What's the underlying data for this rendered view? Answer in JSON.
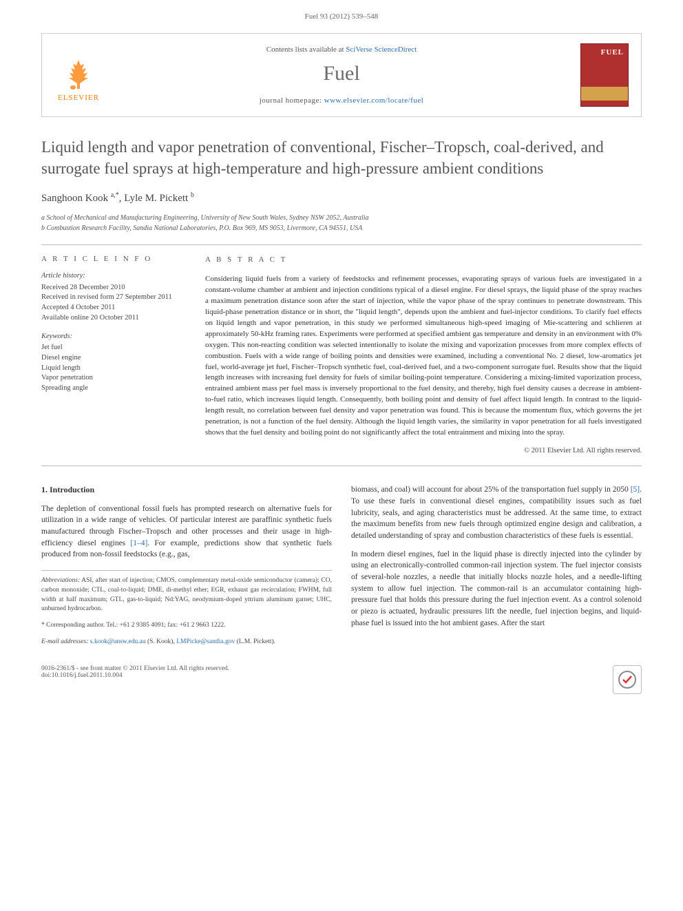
{
  "header": {
    "running_head": "Fuel 93 (2012) 539–548"
  },
  "masthead": {
    "publisher": "ELSEVIER",
    "contents_prefix": "Contents lists available at ",
    "contents_link": "SciVerse ScienceDirect",
    "journal_name": "Fuel",
    "homepage_label": "journal homepage: ",
    "homepage_url": "www.elsevier.com/locate/fuel",
    "cover_title": "FUEL"
  },
  "article": {
    "title": "Liquid length and vapor penetration of conventional, Fischer–Tropsch, coal-derived, and surrogate fuel sprays at high-temperature and high-pressure ambient conditions",
    "authors_html": "Sanghoon Kook <sup>a,*</sup>, Lyle M. Pickett <sup>b</sup>",
    "affiliations": [
      "a School of Mechanical and Manufacturing Engineering, University of New South Wales, Sydney NSW 2052, Australia",
      "b Combustion Research Facility, Sandia National Laboratories, P.O. Box 969, MS 9053, Livermore, CA 94551, USA"
    ]
  },
  "info": {
    "heading": "A R T I C L E   I N F O",
    "history_label": "Article history:",
    "history": [
      "Received 28 December 2010",
      "Received in revised form 27 September 2011",
      "Accepted 4 October 2011",
      "Available online 20 October 2011"
    ],
    "keywords_label": "Keywords:",
    "keywords": [
      "Jet fuel",
      "Diesel engine",
      "Liquid length",
      "Vapor penetration",
      "Spreading angle"
    ]
  },
  "abstract": {
    "heading": "A B S T R A C T",
    "text": "Considering liquid fuels from a variety of feedstocks and refinement processes, evaporating sprays of various fuels are investigated in a constant-volume chamber at ambient and injection conditions typical of a diesel engine. For diesel sprays, the liquid phase of the spray reaches a maximum penetration distance soon after the start of injection, while the vapor phase of the spray continues to penetrate downstream. This liquid-phase penetration distance or in short, the \"liquid length\", depends upon the ambient and fuel-injector conditions. To clarify fuel effects on liquid length and vapor penetration, in this study we performed simultaneous high-speed imaging of Mie-scattering and schlieren at approximately 50-kHz framing rates. Experiments were performed at specified ambient gas temperature and density in an environment with 0% oxygen. This non-reacting condition was selected intentionally to isolate the mixing and vaporization processes from more complex effects of combustion. Fuels with a wide range of boiling points and densities were examined, including a conventional No. 2 diesel, low-aromatics jet fuel, world-average jet fuel, Fischer–Tropsch synthetic fuel, coal-derived fuel, and a two-component surrogate fuel. Results show that the liquid length increases with increasing fuel density for fuels of similar boiling-point temperature. Considering a mixing-limited vaporization process, entrained ambient mass per fuel mass is inversely proportional to the fuel density, and thereby, high fuel density causes a decrease in ambient-to-fuel ratio, which increases liquid length. Consequently, both boiling point and density of fuel affect liquid length. In contrast to the liquid-length result, no correlation between fuel density and vapor penetration was found. This is because the momentum flux, which governs the jet penetration, is not a function of the fuel density. Although the liquid length varies, the similarity in vapor penetration for all fuels investigated shows that the fuel density and boiling point do not significantly affect the total entrainment and mixing into the spray.",
    "copyright": "© 2011 Elsevier Ltd. All rights reserved."
  },
  "body": {
    "section_heading": "1. Introduction",
    "left_paras": [
      "The depletion of conventional fossil fuels has prompted research on alternative fuels for utilization in a wide range of vehicles. Of particular interest are paraffinic synthetic fuels manufactured through Fischer–Tropsch and other processes and their usage in high-efficiency diesel engines [1–4]. For example, predictions show that synthetic fuels produced from non-fossil feedstocks (e.g., gas,"
    ],
    "right_paras": [
      "biomass, and coal) will account for about 25% of the transportation fuel supply in 2050 [5]. To use these fuels in conventional diesel engines, compatibility issues such as fuel lubricity, seals, and aging characteristics must be addressed. At the same time, to extract the maximum benefits from new fuels through optimized engine design and calibration, a detailed understanding of spray and combustion characteristics of these fuels is essential.",
      "In modern diesel engines, fuel in the liquid phase is directly injected into the cylinder by using an electronically-controlled common-rail injection system. The fuel injector consists of several-hole nozzles, a needle that initially blocks nozzle holes, and a needle-lifting system to allow fuel injection. The common-rail is an accumulator containing high-pressure fuel that holds this pressure during the fuel injection event. As a control solenoid or piezo is actuated, hydraulic pressures lift the needle, fuel injection begins, and liquid-phase fuel is issued into the hot ambient gases. After the start"
    ]
  },
  "footnotes": {
    "abbrev_label": "Abbreviations:",
    "abbrev_text": " ASI, after start of injection; CMOS, complementary metal-oxide semiconductor (camera); CO, carbon monoxide; CTL, coal-to-liquid; DME, di-methyl ether; EGR, exhaust gas recirculation; FWHM, full width at half maximum; GTL, gas-to-liquid; Nd:YAG, neodymium-doped yttrium aluminum garnet; UHC, unburned hydrocarbon.",
    "corr_label": "* Corresponding author. ",
    "corr_text": "Tel.: +61 2 9385 4091; fax: +61 2 9663 1222.",
    "email_label": "E-mail addresses: ",
    "email1": "s.kook@unsw.edu.au",
    "email1_who": " (S. Kook), ",
    "email2": "LMPicke@sandia.gov",
    "email2_who": " (L.M. Pickett)."
  },
  "footer": {
    "left_line1": "0016-2361/$ - see front matter © 2011 Elsevier Ltd. All rights reserved.",
    "left_line2": "doi:10.1016/j.fuel.2011.10.004"
  }
}
